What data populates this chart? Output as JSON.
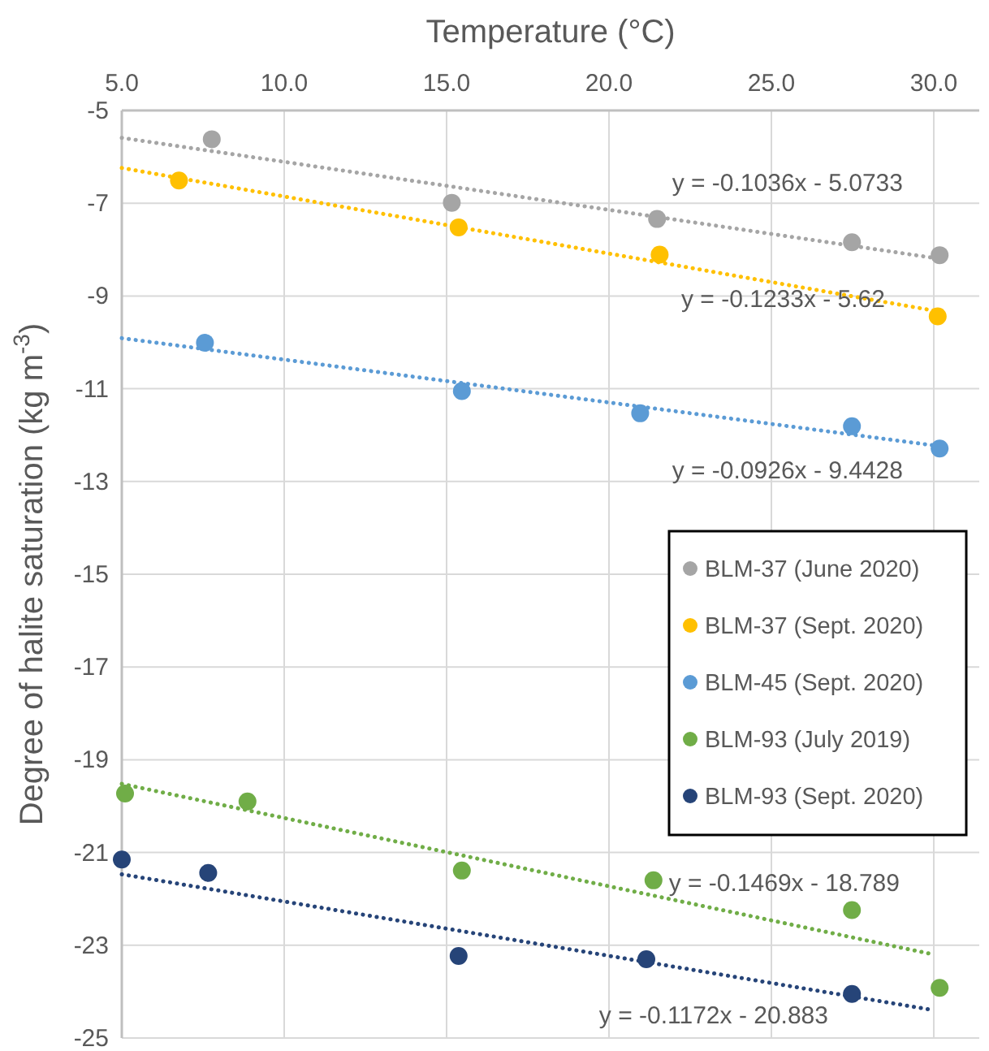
{
  "chart_data": {
    "type": "scatter",
    "xlabel": "Temperature (°C)",
    "ylabel": "Degree of halite saturation (kg m$^{-3}$)",
    "xlim": [
      5,
      31.4
    ],
    "xticks": [
      {
        "value": 5,
        "label": "5.0"
      },
      {
        "value": 10,
        "label": "10.0"
      },
      {
        "value": 15,
        "label": "15.0"
      },
      {
        "value": 20,
        "label": "20.0"
      },
      {
        "value": 25,
        "label": "25.0"
      },
      {
        "value": 30,
        "label": "30.0"
      }
    ],
    "ylim": [
      -25,
      -5
    ],
    "yticks": [
      -5,
      -7,
      -9,
      -11,
      -13,
      -15,
      -17,
      -19,
      -21,
      -23,
      -25
    ],
    "grid": true,
    "legend": "right",
    "marker": "circle",
    "series": [
      {
        "name": "BLM-37 (June 2020)",
        "color": "#a5a5a5",
        "x": [
          7.77,
          15.16,
          21.48,
          27.48,
          30.18
        ],
        "values": [
          -5.62,
          -6.99,
          -7.34,
          -7.84,
          -8.12
        ]
      },
      {
        "name": "BLM-37 (Sept. 2020)",
        "color": "#ffc000",
        "x": [
          6.76,
          15.37,
          21.56,
          30.12
        ],
        "values": [
          -6.51,
          -7.52,
          -8.11,
          -9.44
        ]
      },
      {
        "name": "BLM-45 (Sept. 2020)",
        "color": "#5b9bd5",
        "x": [
          7.56,
          15.47,
          20.96,
          27.48,
          30.18
        ],
        "values": [
          -10.01,
          -11.05,
          -11.53,
          -11.81,
          -12.29
        ]
      },
      {
        "name": "BLM-93 (July 2019)",
        "color": "#70ad47",
        "x": [
          5.1,
          8.87,
          15.47,
          21.37,
          27.48,
          30.18
        ],
        "values": [
          -19.73,
          -19.9,
          -21.39,
          -21.6,
          -22.24,
          -23.92
        ]
      },
      {
        "name": "BLM-93 (Sept. 2020)",
        "color": "#264478",
        "x": [
          5.0,
          7.66,
          15.37,
          21.15,
          27.48
        ],
        "values": [
          -21.15,
          -21.44,
          -23.23,
          -23.3,
          -24.05
        ]
      },
      {
        "type": "line",
        "color": "#a5a5a5",
        "line_style": "dotted",
        "marker": "none",
        "x": [
          5,
          30.2
        ],
        "values": [
          -5.59,
          -8.2
        ]
      },
      {
        "type": "line",
        "color": "#ffc000",
        "line_style": "dotted",
        "marker": "none",
        "x": [
          5,
          30.2
        ],
        "values": [
          -6.24,
          -9.34
        ]
      },
      {
        "type": "line",
        "color": "#5b9bd5",
        "line_style": "dotted",
        "marker": "none",
        "x": [
          5,
          30.2
        ],
        "values": [
          -9.91,
          -12.24
        ]
      },
      {
        "type": "line",
        "color": "#70ad47",
        "line_style": "dotted",
        "marker": "none",
        "x": [
          5,
          30
        ],
        "values": [
          -19.52,
          -23.2
        ]
      },
      {
        "type": "line",
        "color": "#264478",
        "line_style": "dotted",
        "marker": "none",
        "x": [
          5,
          30
        ],
        "values": [
          -21.47,
          -24.4
        ]
      }
    ],
    "annotations": [
      "y = -0.1036x - 5.0733",
      "y = -0.1233x - 5.62",
      "y = -0.0926x - 9.4428",
      "y = -0.1469x - 18.789",
      "y = -0.1172x - 20.883"
    ]
  }
}
